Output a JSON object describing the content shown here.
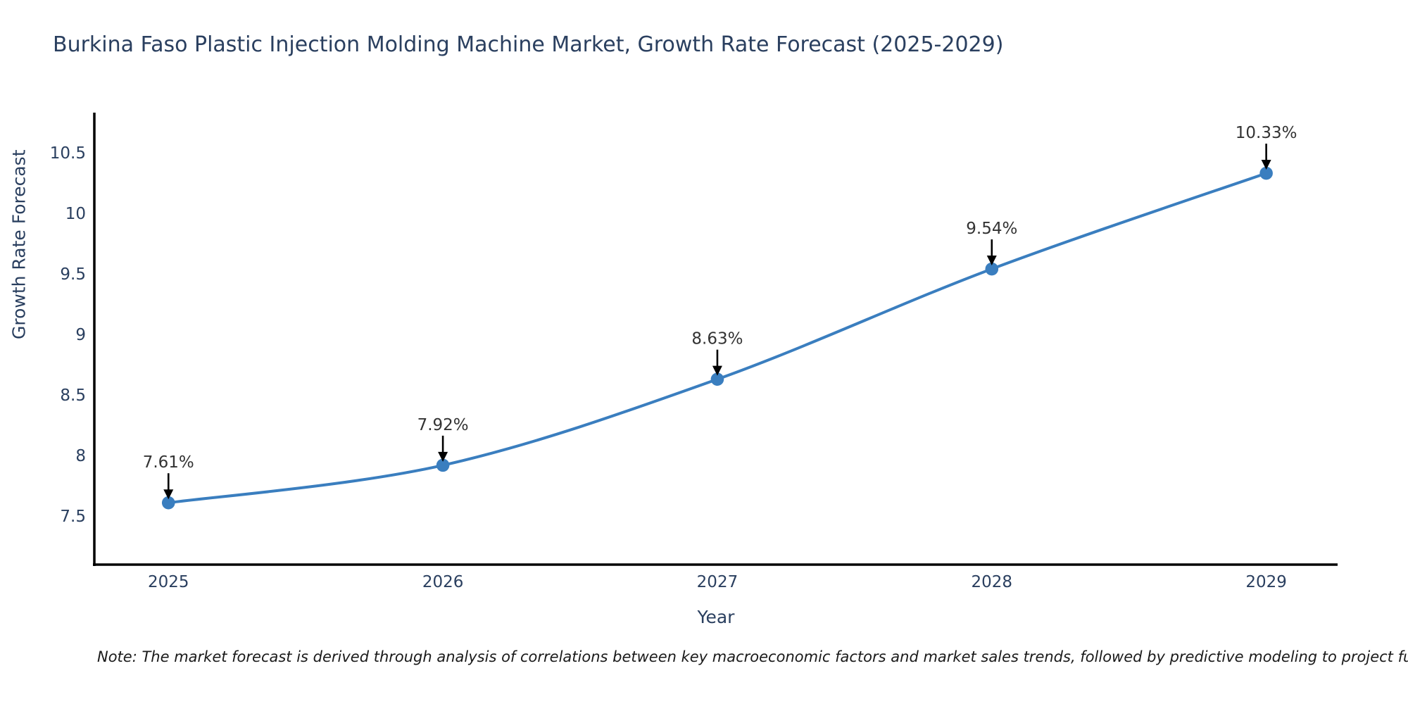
{
  "header": {
    "title": "Burkina Faso Plastic Injection Molding Machine Market, Growth Rate Forecast (2025-2029)"
  },
  "footer": {
    "note": "Note: The market forecast is derived through analysis of correlations between key macroeconomic factors and market sales trends, followed by predictive modeling to project future sal"
  },
  "chart_data": {
    "type": "line",
    "title": "Burkina Faso Plastic Injection Molding Machine Market, Growth Rate Forecast (2025-2029)",
    "xlabel": "Year",
    "ylabel": "Growth Rate Forecast",
    "categories": [
      "2025",
      "2026",
      "2027",
      "2028",
      "2029"
    ],
    "x_values": [
      2025,
      2026,
      2027,
      2028,
      2029
    ],
    "series": [
      {
        "name": "Growth Rate Forecast",
        "values": [
          7.61,
          7.92,
          8.63,
          9.54,
          10.33
        ]
      }
    ],
    "point_labels": [
      "7.61%",
      "7.92%",
      "8.63%",
      "9.54%",
      "10.33%"
    ],
    "y_ticks": [
      "7.5",
      "8",
      "8.5",
      "9",
      "9.5",
      "10",
      "10.5"
    ],
    "ylim": [
      7.1,
      10.83
    ],
    "xlim": [
      2024.73,
      2029.26
    ],
    "grid": false,
    "legend_position": "none",
    "line_shape": "spline",
    "annotation_style": "value label with downward arrow to marker",
    "colors": {
      "line": "#3a7ebf",
      "marker": "#3a7ebf",
      "axis": "#000000",
      "tick_label": "#2a3f5f",
      "title": "#2a3f5f",
      "annotation_text": "#333333",
      "annotation_arrow": "#000000",
      "background": "#ffffff"
    }
  }
}
